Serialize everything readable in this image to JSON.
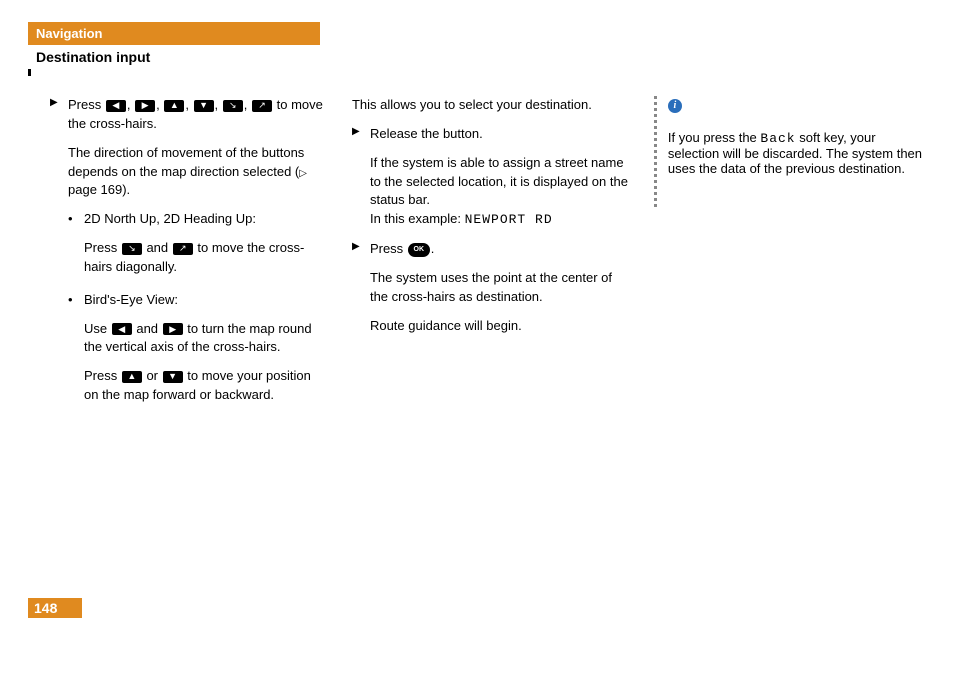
{
  "colors": {
    "accent": "#e08a1f",
    "text": "#000000",
    "bg": "#ffffff",
    "info": "#2a6ebb",
    "dash": "#888888"
  },
  "page_number": "148",
  "header": {
    "chapter": "Navigation",
    "section": "Destination input"
  },
  "icons": {
    "left": "◀",
    "right": "▶",
    "up": "▲",
    "down": "▼",
    "diag_dl": "↘",
    "diag_ur": "↗",
    "ok": "OK",
    "step": "▶",
    "page_ref": "▷",
    "bullet": "•"
  },
  "col1": {
    "s1a": "Press ",
    "s1b": " to move the cross-hairs.",
    "sep": ", ",
    "p2a": "The direction of movement of the buttons depends on the map direction selected (",
    "p2b": " page 169).",
    "b1": "2D North Up, 2D Heading Up:",
    "b1pA": "Press ",
    "b1pMid": " and ",
    "b1pB": " to move the cross-hairs diagonally.",
    "b2": "Bird's-Eye View:",
    "b2pA": "Use ",
    "b2pMid": " and ",
    "b2pB": " to turn the map round the vertical axis of the cross-hairs.",
    "b2qA": "Press ",
    "b2qMid": " or ",
    "b2qB": " to move your position on the map forward or backward."
  },
  "col2": {
    "p1": "This allows you to select your destination.",
    "s1": "Release the button.",
    "p2": "If the system is able to assign a street name to the selected location, it is displayed on the status bar.",
    "p2b": "In this example: ",
    "example": "NEWPORT RD",
    "s2a": "Press ",
    "s2b": ".",
    "p3": "The system uses the point at the center of the cross-hairs as destination.",
    "p4": "Route guidance will begin."
  },
  "col3": {
    "p1a": "If you press the ",
    "back": "Back",
    "p1b": " soft key, your selection will be discarded. The system then uses the data of the previous destination."
  }
}
